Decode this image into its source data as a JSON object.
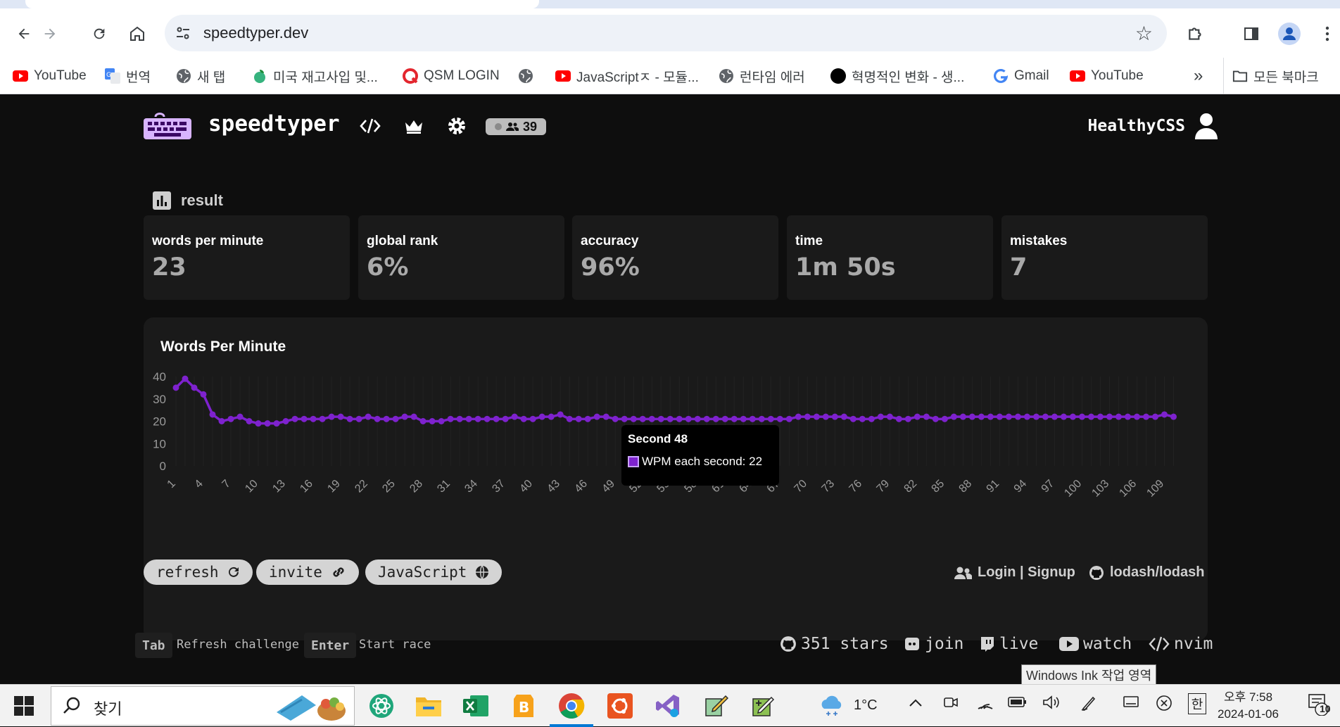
{
  "browser": {
    "url": "speedtyper.dev",
    "bookmarks": [
      {
        "label": "YouTube",
        "icon": "youtube-icon"
      },
      {
        "label": "번역",
        "icon": "translate-icon"
      },
      {
        "label": "새 탭",
        "icon": "globe-icon"
      },
      {
        "label": "미국 재고사입 및...",
        "icon": "leaf-icon"
      },
      {
        "label": "QSM LOGIN",
        "icon": "qsm-icon"
      },
      {
        "label": "",
        "icon": "globe-icon"
      },
      {
        "label": "JavaScriptㅈ - 모듈...",
        "icon": "youtube-icon"
      },
      {
        "label": "런타임 에러",
        "icon": "globe-icon"
      },
      {
        "label": "혁명적인 변화 - 생...",
        "icon": "circle-icon"
      },
      {
        "label": "Gmail",
        "icon": "google-icon"
      },
      {
        "label": "YouTube",
        "icon": "youtube-icon"
      }
    ],
    "more": "»",
    "all_bookmarks": "모든 북마크"
  },
  "header": {
    "brand": "speedtyper",
    "online_count": "39",
    "username": "HealthyCSS"
  },
  "result": {
    "heading": "result",
    "stats": [
      {
        "label": "words per minute",
        "value": "23"
      },
      {
        "label": "global rank",
        "value": "6%"
      },
      {
        "label": "accuracy",
        "value": "96%"
      },
      {
        "label": "time",
        "value": "1m 50s"
      },
      {
        "label": "mistakes",
        "value": "7"
      }
    ]
  },
  "chart_data": {
    "type": "line",
    "title": "Words Per Minute",
    "xlabel": "",
    "ylabel": "",
    "ylim": [
      0,
      40
    ],
    "yticks": [
      0,
      10,
      20,
      30,
      40
    ],
    "xticks": [
      1,
      4,
      7,
      10,
      13,
      16,
      19,
      22,
      25,
      28,
      31,
      34,
      37,
      40,
      43,
      46,
      49,
      52,
      55,
      58,
      61,
      64,
      67,
      70,
      73,
      76,
      79,
      82,
      85,
      88,
      91,
      94,
      97,
      100,
      103,
      106,
      109
    ],
    "series": [
      {
        "name": "WPM each second",
        "color": "#7e22ce",
        "x_start": 1,
        "values": [
          35,
          39,
          35,
          32,
          23,
          20,
          21,
          22,
          20,
          19,
          19,
          19,
          20,
          21,
          21,
          21,
          21,
          22,
          22,
          21,
          21,
          22,
          21,
          21,
          21,
          22,
          22,
          20,
          20,
          20,
          21,
          21,
          21,
          21,
          21,
          21,
          21,
          22,
          21,
          21,
          22,
          22,
          23,
          21,
          21,
          21,
          22,
          22,
          21,
          21,
          21,
          21,
          21,
          21,
          21,
          21,
          21,
          21,
          21,
          21,
          21,
          21,
          21,
          21,
          21,
          21,
          21,
          21,
          22,
          22,
          22,
          22,
          22,
          22,
          21,
          21,
          21,
          22,
          22,
          21,
          21,
          22,
          22,
          21,
          21,
          22,
          22,
          22,
          22,
          22,
          22,
          22,
          22,
          22,
          22,
          22,
          22,
          22,
          22,
          22,
          22,
          22,
          22,
          22,
          22,
          22,
          22,
          22,
          23,
          22
        ]
      }
    ],
    "tooltip": {
      "title": "Second 48",
      "label": "WPM each second: 22"
    },
    "grid": true,
    "legend": "none"
  },
  "actions": {
    "refresh": "refresh",
    "invite": "invite",
    "language": "JavaScript",
    "login": "Login | Signup",
    "repo": "lodash/lodash"
  },
  "footer": {
    "key1": "Tab",
    "key1_desc": "Refresh challenge",
    "key2": "Enter",
    "key2_desc": "Start race",
    "stars": "351 stars",
    "join": "join",
    "live": "live",
    "watch": "watch",
    "nvim": "nvim"
  },
  "tooltip_ink": "Windows Ink 작업 영역",
  "taskbar": {
    "search_text": "찾기",
    "weather": "1°C",
    "time": "오후 7:58",
    "date": "2024-01-06",
    "notifications": "10",
    "ime": "한"
  }
}
